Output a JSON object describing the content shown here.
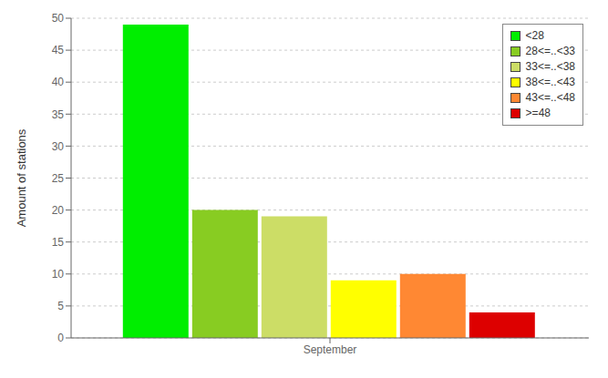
{
  "chart_data": {
    "type": "bar",
    "categories": [
      "September"
    ],
    "series": [
      {
        "name": "<28",
        "color": "#00ee00",
        "values": [
          49
        ]
      },
      {
        "name": "28<=..<33",
        "color": "#88cc22",
        "values": [
          20
        ]
      },
      {
        "name": "33<=..<38",
        "color": "#ccdd66",
        "values": [
          19
        ]
      },
      {
        "name": "38<=..<43",
        "color": "#ffff00",
        "values": [
          9
        ]
      },
      {
        "name": "43<=..<48",
        "color": "#ff8833",
        "values": [
          10
        ]
      },
      {
        "name": ">=48",
        "color": "#dd0000",
        "values": [
          4
        ]
      }
    ],
    "ylabel": "Amount of stations",
    "ylim": [
      0,
      50
    ],
    "yticks": [
      0,
      5,
      10,
      15,
      20,
      25,
      30,
      35,
      40,
      45,
      50
    ],
    "grid": true,
    "legend": "upper right"
  }
}
